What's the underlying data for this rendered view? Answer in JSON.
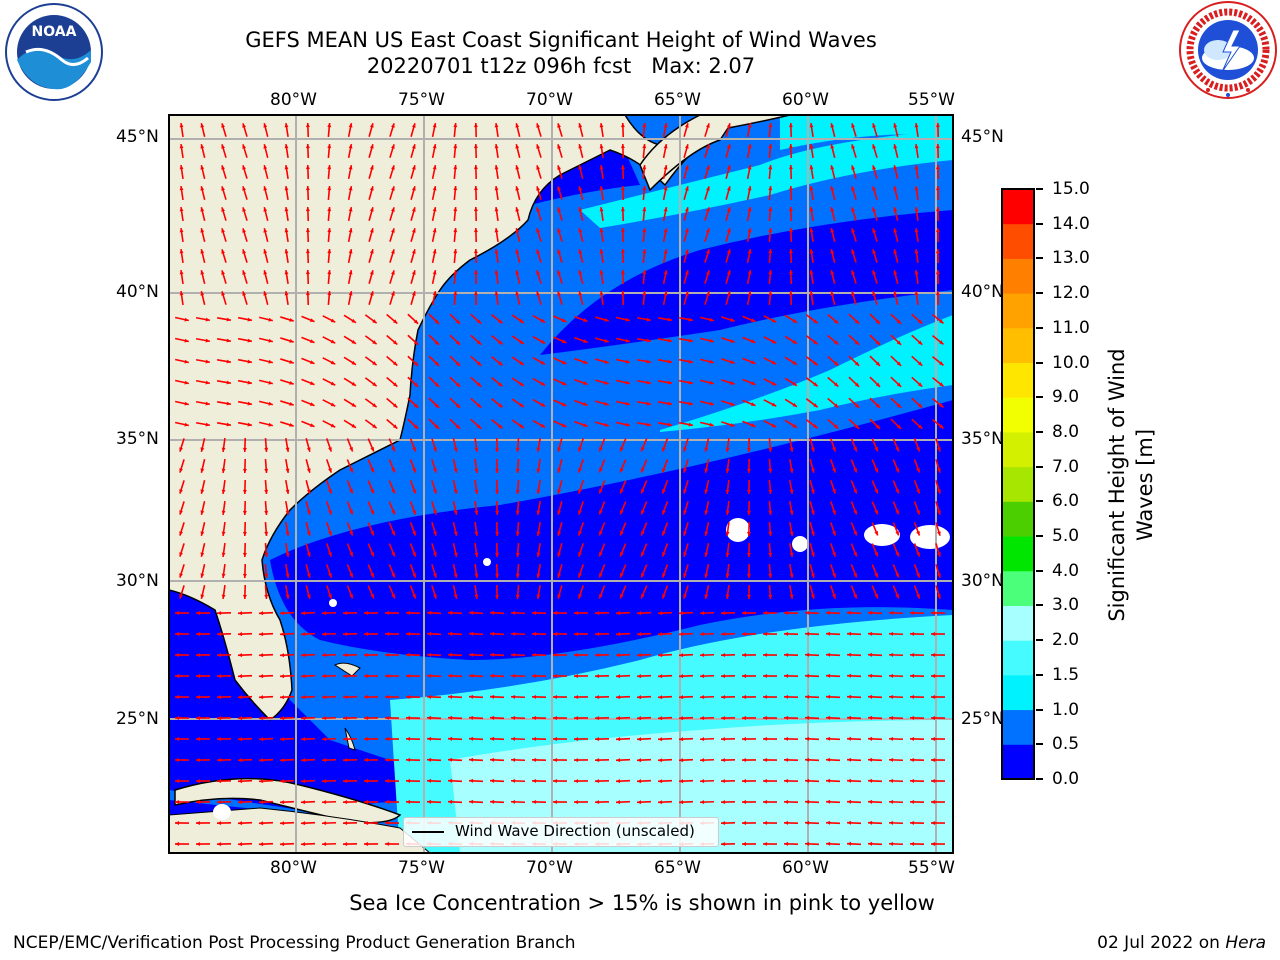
{
  "title": {
    "line1": "GEFS MEAN US East Coast Significant Height of Wind Waves",
    "line2": "20220701 t12z 096h fcst   Max: 2.07"
  },
  "logos": {
    "left": {
      "name": "noaa-logo",
      "text": "NOAA",
      "ring_text": "NATIONAL OCEANIC AND ATMOSPHERIC ADMINISTRATION · U.S. DEPARTMENT OF COMMERCE"
    },
    "right": {
      "name": "nws-logo",
      "ring_text": "NATIONAL WEATHER SERVICE"
    }
  },
  "map": {
    "lon_labels": [
      "80°W",
      "75°W",
      "70°W",
      "65°W",
      "60°W",
      "55°W"
    ],
    "lat_labels": [
      "45°N",
      "40°N",
      "35°N",
      "30°N",
      "25°N"
    ],
    "legend_label": "Wind Wave Direction (unscaled)",
    "land_color": "#efeedb",
    "arrow_color": "#ff0000",
    "grid_color": "#b0b0b0"
  },
  "colorbar": {
    "label_line1": "Significant Height of Wind",
    "label_line2": "Waves [m]",
    "ticks": [
      "0.0",
      "0.5",
      "1.0",
      "1.5",
      "2.0",
      "3.0",
      "4.0",
      "5.0",
      "6.0",
      "7.0",
      "8.0",
      "9.0",
      "10.0",
      "11.0",
      "12.0",
      "13.0",
      "14.0",
      "15.0"
    ],
    "colors": [
      "#0000ff",
      "#0072ff",
      "#00f2ff",
      "#45fbff",
      "#a8ffff",
      "#4cff7a",
      "#00e600",
      "#4ccf00",
      "#a6e600",
      "#d2f000",
      "#f2ff00",
      "#ffe600",
      "#ffbf00",
      "#ffa200",
      "#ff7f00",
      "#ff4d00",
      "#ff0000"
    ]
  },
  "caption": "Sea Ice Concentration > 15% is shown in pink to yellow",
  "footer": {
    "left": "NCEP/EMC/Verification Post Processing Product Generation Branch",
    "right_prefix": "02 Jul 2022 on ",
    "right_machine": "Hera"
  }
}
